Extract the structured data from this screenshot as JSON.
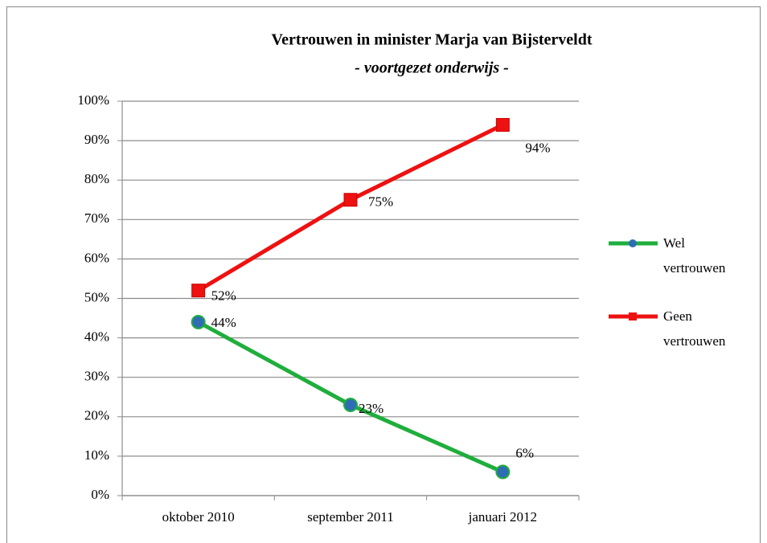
{
  "chart_data": {
    "type": "line",
    "title": "Vertrouwen in minister Marja van Bijsterveldt",
    "subtitle": "- voortgezet onderwijs -",
    "categories": [
      "oktober 2010",
      "september 2011",
      "januari 2012"
    ],
    "series": [
      {
        "name": "Wel vertrouwen",
        "color": "#1fae3c",
        "marker": "circle",
        "marker_color": "#2e6db4",
        "values": [
          44,
          23,
          6
        ],
        "value_labels": [
          "44%",
          "23%",
          "6%"
        ]
      },
      {
        "name": "Geen vertrouwen",
        "color": "#ee1111",
        "marker": "square",
        "marker_color": "#ee1111",
        "values": [
          52,
          75,
          94
        ],
        "value_labels": [
          "52%",
          "75%",
          "94%"
        ]
      }
    ],
    "ylim": [
      0,
      100
    ],
    "yticks": [
      {
        "value": 0,
        "label": "0%"
      },
      {
        "value": 10,
        "label": "10%"
      },
      {
        "value": 20,
        "label": "20%"
      },
      {
        "value": 30,
        "label": "30%"
      },
      {
        "value": 40,
        "label": "40%"
      },
      {
        "value": 50,
        "label": "50%"
      },
      {
        "value": 60,
        "label": "60%"
      },
      {
        "value": 70,
        "label": "70%"
      },
      {
        "value": 80,
        "label": "80%"
      },
      {
        "value": 90,
        "label": "90%"
      },
      {
        "value": 100,
        "label": "100%"
      }
    ],
    "grid": true,
    "legend": "right"
  }
}
